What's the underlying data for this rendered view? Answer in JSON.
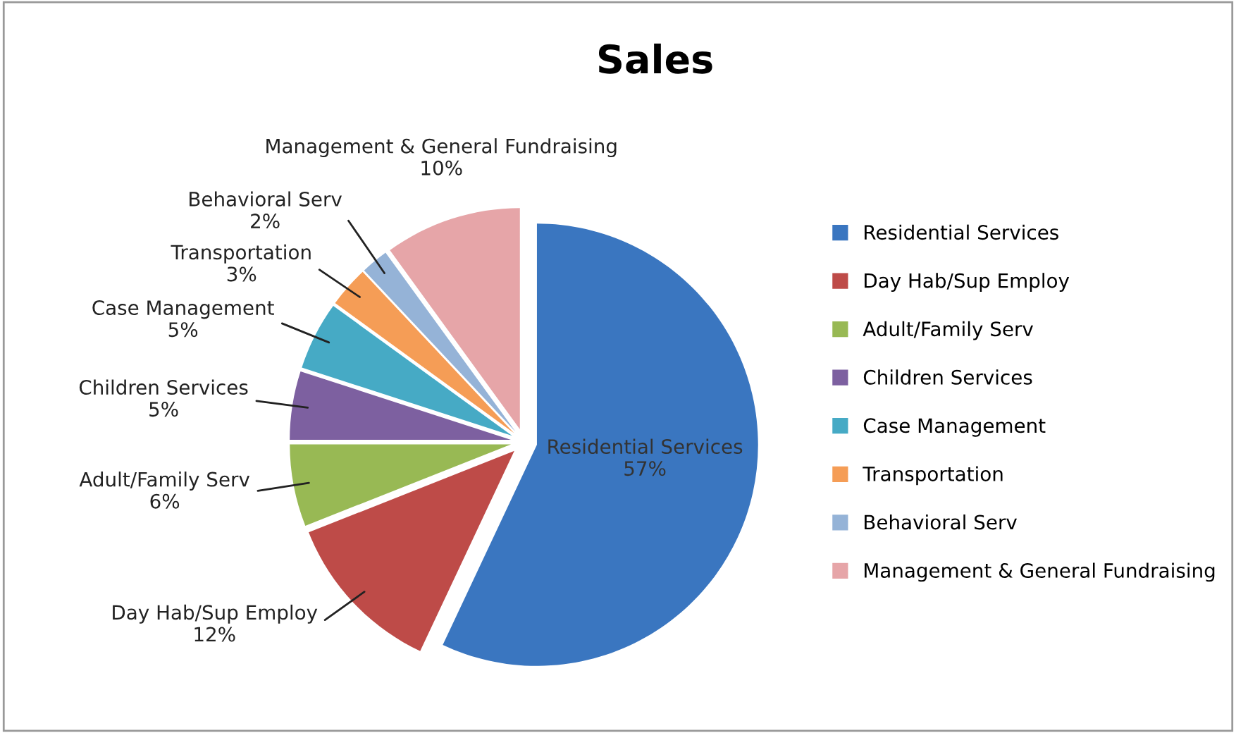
{
  "chart_data": {
    "type": "pie",
    "title": "Sales",
    "categories": [
      "Residential Services",
      "Day Hab/Sup Employ",
      "Adult/Family Serv",
      "Children Services",
      "Case Management",
      "Transportation",
      "Behavioral Serv",
      "Management & General Fundraising"
    ],
    "values": [
      57,
      12,
      6,
      5,
      5,
      3,
      2,
      10
    ],
    "value_labels": [
      "57%",
      "12%",
      "6%",
      "5%",
      "5%",
      "3%",
      "2%",
      "10%"
    ],
    "colors": [
      "#3a76c0",
      "#be4b48",
      "#98b954",
      "#7d60a0",
      "#46aac5",
      "#f59d56",
      "#95b3d7",
      "#e6a5a8"
    ],
    "legend": "right"
  }
}
